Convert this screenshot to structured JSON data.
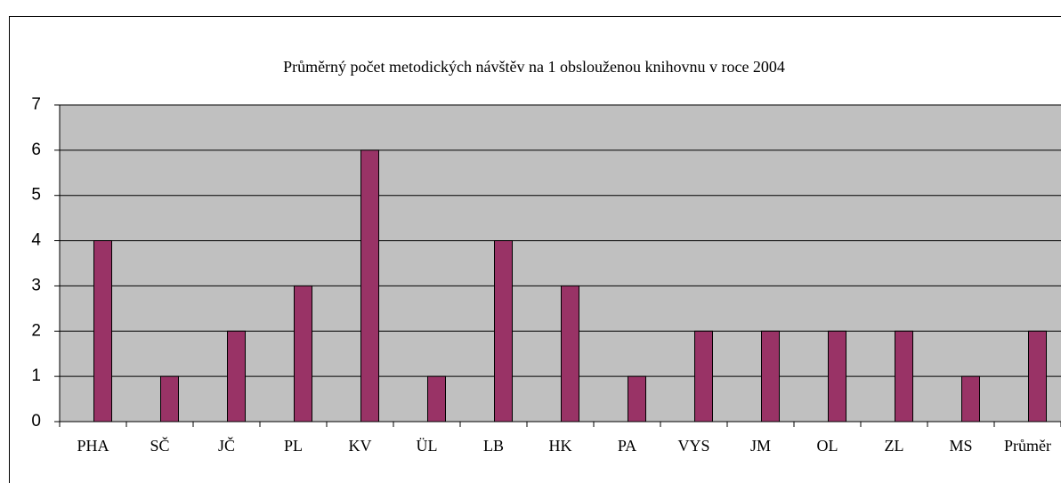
{
  "chart_data": {
    "type": "bar",
    "title": "Průměrný počet metodických návštěv na 1 obslouženou knihovnu v roce 2004",
    "categories": [
      "PHA",
      "SČ",
      "JČ",
      "PL",
      "KV",
      "ÜL",
      "LB",
      "HK",
      "PA",
      "VYS",
      "JM",
      "OL",
      "ZL",
      "MS",
      "Průměr"
    ],
    "values": [
      4,
      1,
      2,
      3,
      6,
      1,
      4,
      3,
      1,
      2,
      2,
      2,
      2,
      1,
      2
    ],
    "color": "#993366",
    "ylim": [
      0,
      7
    ],
    "yticks": [
      0,
      1,
      2,
      3,
      4,
      5,
      6,
      7
    ],
    "grid": true
  }
}
